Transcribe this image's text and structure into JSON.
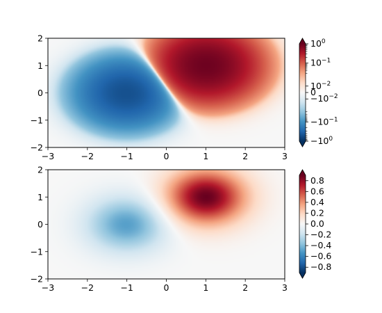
{
  "chart_data": [
    {
      "type": "heatmap",
      "title": "",
      "xlabel": "",
      "ylabel": "",
      "xlim": [
        -3,
        3
      ],
      "ylim": [
        -2,
        2
      ],
      "x_ticks": [
        -3,
        -2,
        -1,
        0,
        1,
        2,
        3
      ],
      "x_tick_labels": [
        "−3",
        "−2",
        "−1",
        "0",
        "1",
        "2",
        "3"
      ],
      "y_ticks": [
        -2,
        -1,
        0,
        1,
        2
      ],
      "y_tick_labels": [
        "−2",
        "−1",
        "0",
        "1",
        "2"
      ],
      "colormap": "RdBu_r",
      "norm": "symlog",
      "symlog_linthresh": 0.03,
      "vmin": -1,
      "vmax": 1,
      "blob_positive": {
        "center": [
          1,
          1
        ],
        "peak": 0.9
      },
      "blob_negative": {
        "center": [
          -1,
          0
        ],
        "peak": -0.5
      },
      "colorbar": {
        "extend": "both",
        "ticks": [
          1,
          0.1,
          0.01,
          0,
          -0.01,
          -0.1,
          -1
        ],
        "tick_labels": [
          "10^0",
          "10^−1",
          "10^−2",
          "0",
          "−10^−2",
          "−10^−1",
          "−10^0"
        ]
      }
    },
    {
      "type": "heatmap",
      "title": "",
      "xlabel": "",
      "ylabel": "",
      "xlim": [
        -3,
        3
      ],
      "ylim": [
        -2,
        2
      ],
      "x_ticks": [
        -3,
        -2,
        -1,
        0,
        1,
        2,
        3
      ],
      "x_tick_labels": [
        "−3",
        "−2",
        "−1",
        "0",
        "1",
        "2",
        "3"
      ],
      "y_ticks": [
        -2,
        -1,
        0,
        1,
        2
      ],
      "y_tick_labels": [
        "−2",
        "−1",
        "0",
        "1",
        "2"
      ],
      "colormap": "RdBu_r",
      "norm": "linear",
      "vmin": -0.9,
      "vmax": 0.9,
      "blob_positive": {
        "center": [
          1,
          1
        ],
        "peak": 0.9
      },
      "blob_negative": {
        "center": [
          -1,
          0
        ],
        "peak": -0.5
      },
      "colorbar": {
        "extend": "both",
        "ticks": [
          0.8,
          0.6,
          0.4,
          0.2,
          0.0,
          -0.2,
          -0.4,
          -0.6,
          -0.8
        ],
        "tick_labels": [
          "0.8",
          "0.6",
          "0.4",
          "0.2",
          "0.0",
          "−0.2",
          "−0.4",
          "−0.6",
          "−0.8"
        ]
      }
    }
  ]
}
